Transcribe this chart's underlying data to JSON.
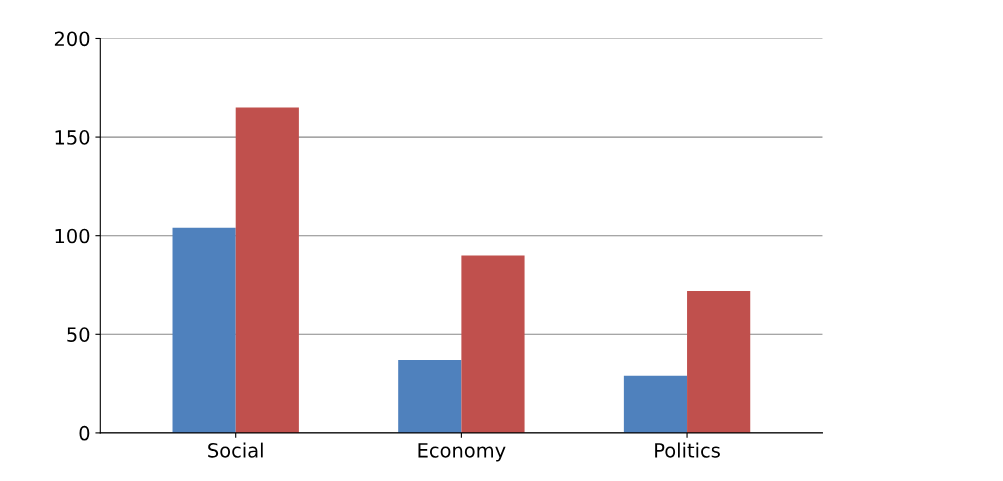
{
  "chart_data": {
    "type": "bar",
    "categories": [
      "Social",
      "Economy",
      "Politics"
    ],
    "series": [
      {
        "color": "#4f81bd",
        "values": [
          104,
          37,
          29
        ]
      },
      {
        "color": "#c0504d",
        "values": [
          165,
          90,
          72
        ]
      }
    ],
    "ylim": [
      0,
      200
    ],
    "yticks": [
      0,
      50,
      100,
      150,
      200
    ],
    "grid": "y"
  }
}
